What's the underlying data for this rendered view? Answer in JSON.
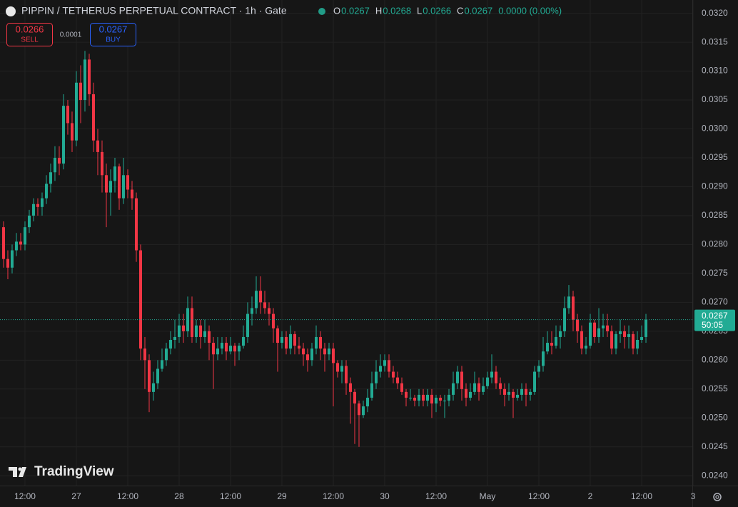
{
  "chart_data": {
    "type": "candlestick",
    "title": "PIPPIN / TETHERUS PERPETUAL CONTRACT · 1h · Gate",
    "ohlc_legend": [
      {
        "label": "O",
        "value": "0.0267"
      },
      {
        "label": "H",
        "value": "0.0268"
      },
      {
        "label": "L",
        "value": "0.0266"
      },
      {
        "label": "C",
        "value": "0.0267"
      }
    ],
    "change": "0.0000 (0.00%)",
    "sell": {
      "price": "0.0266",
      "label": "SELL"
    },
    "spread": "0.0001",
    "buy": {
      "price": "0.0267",
      "label": "BUY"
    },
    "up_color": "#22ab94",
    "down_color": "#f23645",
    "grid": true,
    "candles": [
      [
        0.0283,
        0.0284,
        0.0276,
        0.02775
      ],
      [
        0.02775,
        0.0279,
        0.0274,
        0.0276
      ],
      [
        0.0276,
        0.028,
        0.0275,
        0.0279
      ],
      [
        0.0279,
        0.0282,
        0.0278,
        0.02805
      ],
      [
        0.02805,
        0.0282,
        0.0279,
        0.028
      ],
      [
        0.028,
        0.0284,
        0.0279,
        0.0283
      ],
      [
        0.0283,
        0.0286,
        0.0282,
        0.0285
      ],
      [
        0.0285,
        0.0288,
        0.0284,
        0.0287
      ],
      [
        0.0287,
        0.0288,
        0.0285,
        0.02865
      ],
      [
        0.02865,
        0.0289,
        0.0285,
        0.0288
      ],
      [
        0.0288,
        0.0292,
        0.0287,
        0.02905
      ],
      [
        0.02905,
        0.0294,
        0.0289,
        0.02925
      ],
      [
        0.02925,
        0.0297,
        0.0291,
        0.0295
      ],
      [
        0.0295,
        0.0297,
        0.0292,
        0.0294
      ],
      [
        0.0294,
        0.0306,
        0.0293,
        0.0304
      ],
      [
        0.0304,
        0.0305,
        0.0299,
        0.0301
      ],
      [
        0.0301,
        0.0303,
        0.0296,
        0.0298
      ],
      [
        0.0298,
        0.031,
        0.0297,
        0.0308
      ],
      [
        0.0308,
        0.0311,
        0.0301,
        0.0305
      ],
      [
        0.0305,
        0.03135,
        0.0303,
        0.0312
      ],
      [
        0.0312,
        0.0313,
        0.0304,
        0.0306
      ],
      [
        0.0306,
        0.0308,
        0.0296,
        0.0298
      ],
      [
        0.0298,
        0.03,
        0.0292,
        0.0296
      ],
      [
        0.0296,
        0.0298,
        0.0289,
        0.0292
      ],
      [
        0.0292,
        0.0294,
        0.0283,
        0.0289
      ],
      [
        0.0289,
        0.0293,
        0.0285,
        0.0291
      ],
      [
        0.0291,
        0.0295,
        0.0289,
        0.02935
      ],
      [
        0.02935,
        0.0294,
        0.0286,
        0.0288
      ],
      [
        0.0288,
        0.0295,
        0.0287,
        0.0292
      ],
      [
        0.0292,
        0.0293,
        0.0288,
        0.02895
      ],
      [
        0.02895,
        0.0291,
        0.0286,
        0.0288
      ],
      [
        0.0288,
        0.0289,
        0.0277,
        0.0279
      ],
      [
        0.0279,
        0.028,
        0.026,
        0.0262
      ],
      [
        0.0262,
        0.0264,
        0.0255,
        0.026
      ],
      [
        0.026,
        0.0261,
        0.0251,
        0.02545
      ],
      [
        0.02545,
        0.0258,
        0.0253,
        0.0256
      ],
      [
        0.0256,
        0.026,
        0.0255,
        0.02585
      ],
      [
        0.02585,
        0.0262,
        0.0258,
        0.026
      ],
      [
        0.026,
        0.0263,
        0.0259,
        0.0262
      ],
      [
        0.0262,
        0.0265,
        0.0261,
        0.02635
      ],
      [
        0.02635,
        0.0267,
        0.0262,
        0.0264
      ],
      [
        0.0264,
        0.0268,
        0.0263,
        0.0266
      ],
      [
        0.0266,
        0.0268,
        0.0263,
        0.0265
      ],
      [
        0.0265,
        0.0271,
        0.0264,
        0.0269
      ],
      [
        0.0269,
        0.0271,
        0.0263,
        0.0264
      ],
      [
        0.0264,
        0.0267,
        0.0263,
        0.0266
      ],
      [
        0.0266,
        0.0267,
        0.0262,
        0.0264
      ],
      [
        0.0264,
        0.0267,
        0.0263,
        0.0265
      ],
      [
        0.0265,
        0.0266,
        0.026,
        0.0263
      ],
      [
        0.0263,
        0.0264,
        0.0255,
        0.0261
      ],
      [
        0.0261,
        0.0264,
        0.026,
        0.0262
      ],
      [
        0.0262,
        0.0264,
        0.0261,
        0.0263
      ],
      [
        0.0263,
        0.0264,
        0.026,
        0.02615
      ],
      [
        0.02615,
        0.0264,
        0.0261,
        0.02625
      ],
      [
        0.02625,
        0.0263,
        0.0259,
        0.02615
      ],
      [
        0.02615,
        0.0263,
        0.026,
        0.02625
      ],
      [
        0.02625,
        0.0266,
        0.0262,
        0.0264
      ],
      [
        0.0264,
        0.027,
        0.0263,
        0.0268
      ],
      [
        0.0268,
        0.0271,
        0.0266,
        0.0269
      ],
      [
        0.0269,
        0.02745,
        0.0268,
        0.0272
      ],
      [
        0.0272,
        0.02745,
        0.0268,
        0.027
      ],
      [
        0.027,
        0.0272,
        0.0268,
        0.0269
      ],
      [
        0.0269,
        0.027,
        0.0266,
        0.0268
      ],
      [
        0.0268,
        0.0269,
        0.0263,
        0.02655
      ],
      [
        0.02655,
        0.0266,
        0.0258,
        0.0263
      ],
      [
        0.0263,
        0.0265,
        0.0262,
        0.0264
      ],
      [
        0.0264,
        0.0265,
        0.0261,
        0.0262
      ],
      [
        0.0262,
        0.0266,
        0.0261,
        0.02645
      ],
      [
        0.02645,
        0.0265,
        0.0261,
        0.02625
      ],
      [
        0.02625,
        0.0264,
        0.0261,
        0.0262
      ],
      [
        0.0262,
        0.0263,
        0.0259,
        0.0261
      ],
      [
        0.0261,
        0.0262,
        0.0258,
        0.026
      ],
      [
        0.026,
        0.0263,
        0.0259,
        0.0262
      ],
      [
        0.0262,
        0.0266,
        0.0261,
        0.0264
      ],
      [
        0.0264,
        0.0265,
        0.026,
        0.0262
      ],
      [
        0.0262,
        0.0263,
        0.0258,
        0.0261
      ],
      [
        0.0261,
        0.0263,
        0.026,
        0.0262
      ],
      [
        0.0262,
        0.0263,
        0.0252,
        0.02595
      ],
      [
        0.02595,
        0.026,
        0.0257,
        0.0258
      ],
      [
        0.0258,
        0.026,
        0.0256,
        0.0259
      ],
      [
        0.0259,
        0.026,
        0.0254,
        0.0256
      ],
      [
        0.0256,
        0.0257,
        0.0249,
        0.02545
      ],
      [
        0.02545,
        0.0255,
        0.02455,
        0.02525
      ],
      [
        0.02525,
        0.0253,
        0.0245,
        0.02505
      ],
      [
        0.02505,
        0.0253,
        0.025,
        0.0252
      ],
      [
        0.0252,
        0.0255,
        0.0251,
        0.02535
      ],
      [
        0.02535,
        0.0258,
        0.0253,
        0.0256
      ],
      [
        0.0256,
        0.026,
        0.0255,
        0.0258
      ],
      [
        0.0258,
        0.0261,
        0.0257,
        0.0259
      ],
      [
        0.0259,
        0.0261,
        0.0258,
        0.026
      ],
      [
        0.026,
        0.0261,
        0.0257,
        0.0258
      ],
      [
        0.0258,
        0.0259,
        0.0256,
        0.0257
      ],
      [
        0.0257,
        0.0258,
        0.0255,
        0.0256
      ],
      [
        0.0256,
        0.0257,
        0.0254,
        0.02545
      ],
      [
        0.02545,
        0.0255,
        0.0252,
        0.02535
      ],
      [
        0.02535,
        0.0255,
        0.0253,
        0.02535
      ],
      [
        0.02535,
        0.0254,
        0.0252,
        0.0253
      ],
      [
        0.0253,
        0.0255,
        0.0252,
        0.0254
      ],
      [
        0.0254,
        0.0255,
        0.0252,
        0.0253
      ],
      [
        0.0253,
        0.0255,
        0.0252,
        0.0254
      ],
      [
        0.0254,
        0.0255,
        0.025,
        0.02525
      ],
      [
        0.02525,
        0.0254,
        0.0251,
        0.02535
      ],
      [
        0.02535,
        0.0254,
        0.0252,
        0.0253
      ],
      [
        0.0253,
        0.0254,
        0.025,
        0.0253
      ],
      [
        0.0253,
        0.0255,
        0.0252,
        0.0254
      ],
      [
        0.0254,
        0.0258,
        0.0253,
        0.0256
      ],
      [
        0.0256,
        0.0259,
        0.0255,
        0.0258
      ],
      [
        0.0258,
        0.0259,
        0.0253,
        0.0255
      ],
      [
        0.0255,
        0.0256,
        0.0252,
        0.02535
      ],
      [
        0.02535,
        0.0256,
        0.0253,
        0.02545
      ],
      [
        0.02545,
        0.0258,
        0.0254,
        0.0256
      ],
      [
        0.0256,
        0.0257,
        0.0253,
        0.02545
      ],
      [
        0.02545,
        0.0257,
        0.0254,
        0.02555
      ],
      [
        0.02555,
        0.0258,
        0.0255,
        0.0257
      ],
      [
        0.0257,
        0.0261,
        0.0256,
        0.0258
      ],
      [
        0.0258,
        0.0259,
        0.0255,
        0.0256
      ],
      [
        0.0256,
        0.0257,
        0.0254,
        0.0255
      ],
      [
        0.0255,
        0.0256,
        0.0252,
        0.0254
      ],
      [
        0.0254,
        0.0256,
        0.0253,
        0.02545
      ],
      [
        0.02545,
        0.0255,
        0.025,
        0.02535
      ],
      [
        0.02535,
        0.0255,
        0.0253,
        0.0254
      ],
      [
        0.0254,
        0.0256,
        0.0253,
        0.0255
      ],
      [
        0.0255,
        0.0256,
        0.0252,
        0.0254
      ],
      [
        0.0254,
        0.0255,
        0.0253,
        0.02545
      ],
      [
        0.02545,
        0.0259,
        0.0254,
        0.0258
      ],
      [
        0.0258,
        0.026,
        0.0257,
        0.0259
      ],
      [
        0.0259,
        0.0264,
        0.0258,
        0.02615
      ],
      [
        0.02615,
        0.0265,
        0.0261,
        0.0263
      ],
      [
        0.0263,
        0.0265,
        0.0261,
        0.02625
      ],
      [
        0.02625,
        0.0266,
        0.0262,
        0.0264
      ],
      [
        0.0264,
        0.0266,
        0.0262,
        0.0265
      ],
      [
        0.0265,
        0.0271,
        0.0264,
        0.0269
      ],
      [
        0.0269,
        0.0273,
        0.0268,
        0.0271
      ],
      [
        0.0271,
        0.0272,
        0.0265,
        0.0267
      ],
      [
        0.0267,
        0.0268,
        0.0263,
        0.0265
      ],
      [
        0.0265,
        0.0266,
        0.0261,
        0.0262
      ],
      [
        0.0262,
        0.0264,
        0.0261,
        0.02625
      ],
      [
        0.02625,
        0.0268,
        0.0262,
        0.02665
      ],
      [
        0.02665,
        0.0267,
        0.0263,
        0.0264
      ],
      [
        0.0264,
        0.0269,
        0.0263,
        0.02655
      ],
      [
        0.02655,
        0.0268,
        0.0264,
        0.0266
      ],
      [
        0.0266,
        0.0268,
        0.0264,
        0.0265
      ],
      [
        0.0265,
        0.0266,
        0.0261,
        0.0262
      ],
      [
        0.0262,
        0.0265,
        0.0261,
        0.02645
      ],
      [
        0.02645,
        0.0267,
        0.0263,
        0.0265
      ],
      [
        0.0265,
        0.0266,
        0.0262,
        0.0264
      ],
      [
        0.0264,
        0.0266,
        0.0262,
        0.02645
      ],
      [
        0.02645,
        0.0265,
        0.0261,
        0.0262
      ],
      [
        0.0262,
        0.0265,
        0.0261,
        0.02635
      ],
      [
        0.02635,
        0.0266,
        0.0263,
        0.0264
      ],
      [
        0.0264,
        0.0268,
        0.0263,
        0.0267
      ]
    ],
    "current_price": {
      "value": 0.0267,
      "label": "0.0267"
    },
    "countdown": "50:05",
    "xlim": [
      -0.83,
      160.83
    ],
    "xticks": [
      {
        "value": 5,
        "label": "12:00"
      },
      {
        "value": 17,
        "label": "27"
      },
      {
        "value": 29,
        "label": "12:00"
      },
      {
        "value": 41,
        "label": "28"
      },
      {
        "value": 53,
        "label": "12:00"
      },
      {
        "value": 65,
        "label": "29"
      },
      {
        "value": 77,
        "label": "12:00"
      },
      {
        "value": 89,
        "label": "30"
      },
      {
        "value": 101,
        "label": "12:00"
      },
      {
        "value": 113,
        "label": "May"
      },
      {
        "value": 125,
        "label": "12:00"
      },
      {
        "value": 137,
        "label": "2"
      },
      {
        "value": 149,
        "label": "12:00"
      },
      {
        "value": 161,
        "label": "3"
      }
    ],
    "ylim": [
      0.02383,
      0.03223
    ],
    "yticks": [
      {
        "value": 0.024,
        "label": "0.0240"
      },
      {
        "value": 0.0245,
        "label": "0.0245"
      },
      {
        "value": 0.025,
        "label": "0.0250"
      },
      {
        "value": 0.0255,
        "label": "0.0255"
      },
      {
        "value": 0.026,
        "label": "0.0260"
      },
      {
        "value": 0.0265,
        "label": "0.0265"
      },
      {
        "value": 0.027,
        "label": "0.0270"
      },
      {
        "value": 0.0275,
        "label": "0.0275"
      },
      {
        "value": 0.028,
        "label": "0.0280"
      },
      {
        "value": 0.0285,
        "label": "0.0285"
      },
      {
        "value": 0.029,
        "label": "0.0290"
      },
      {
        "value": 0.0295,
        "label": "0.0295"
      },
      {
        "value": 0.03,
        "label": "0.0300"
      },
      {
        "value": 0.0305,
        "label": "0.0305"
      },
      {
        "value": 0.031,
        "label": "0.0310"
      },
      {
        "value": 0.0315,
        "label": "0.0315"
      },
      {
        "value": 0.032,
        "label": "0.0320"
      }
    ],
    "watermark": "TradingView"
  }
}
